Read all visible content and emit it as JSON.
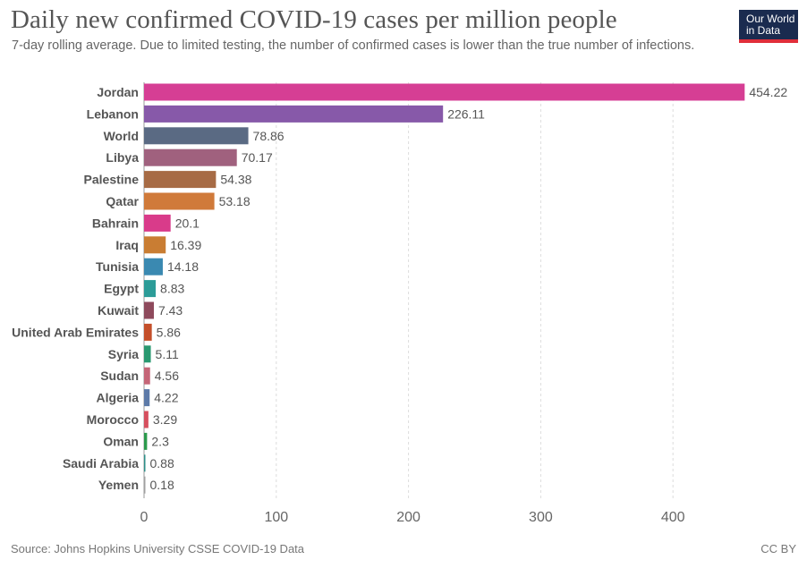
{
  "header": {
    "title": "Daily new confirmed COVID-19 cases per million people",
    "subtitle": "7-day rolling average. Due to limited testing, the number of confirmed cases is lower than the true number of infections."
  },
  "logo": {
    "line1": "Our World",
    "line2": "in Data",
    "bg": "#1a2b4f",
    "accent": "#e02e3a"
  },
  "footer": {
    "source": "Source: Johns Hopkins University CSSE COVID-19 Data",
    "license": "CC BY"
  },
  "chart_data": {
    "type": "bar",
    "orientation": "horizontal",
    "categories": [
      "Jordan",
      "Lebanon",
      "World",
      "Libya",
      "Palestine",
      "Qatar",
      "Bahrain",
      "Iraq",
      "Tunisia",
      "Egypt",
      "Kuwait",
      "United Arab Emirates",
      "Syria",
      "Sudan",
      "Algeria",
      "Morocco",
      "Oman",
      "Saudi Arabia",
      "Yemen"
    ],
    "values": [
      454.22,
      226.11,
      78.86,
      70.17,
      54.38,
      53.18,
      20.1,
      16.39,
      14.18,
      8.83,
      7.43,
      5.86,
      5.11,
      4.56,
      4.22,
      3.29,
      2.3,
      0.88,
      0.18
    ],
    "value_labels": [
      "454.22",
      "226.11",
      "78.86",
      "70.17",
      "54.38",
      "53.18",
      "20.1",
      "16.39",
      "14.18",
      "8.83",
      "7.43",
      "5.86",
      "5.11",
      "4.56",
      "4.22",
      "3.29",
      "2.3",
      "0.88",
      "0.18"
    ],
    "colors": [
      "#d63e94",
      "#8759a9",
      "#5a6a83",
      "#a0617e",
      "#a76b45",
      "#d07a3a",
      "#d93b8a",
      "#c97d33",
      "#3a89b1",
      "#2c9c98",
      "#8e4a5c",
      "#c44f2a",
      "#2a9870",
      "#c56577",
      "#5d7aa8",
      "#d64f5e",
      "#2b9a4c",
      "#2d8f88",
      "#a0a0a0"
    ],
    "x_ticks": [
      0,
      100,
      200,
      300,
      400
    ],
    "xlim": [
      0,
      460
    ],
    "grid": true
  }
}
